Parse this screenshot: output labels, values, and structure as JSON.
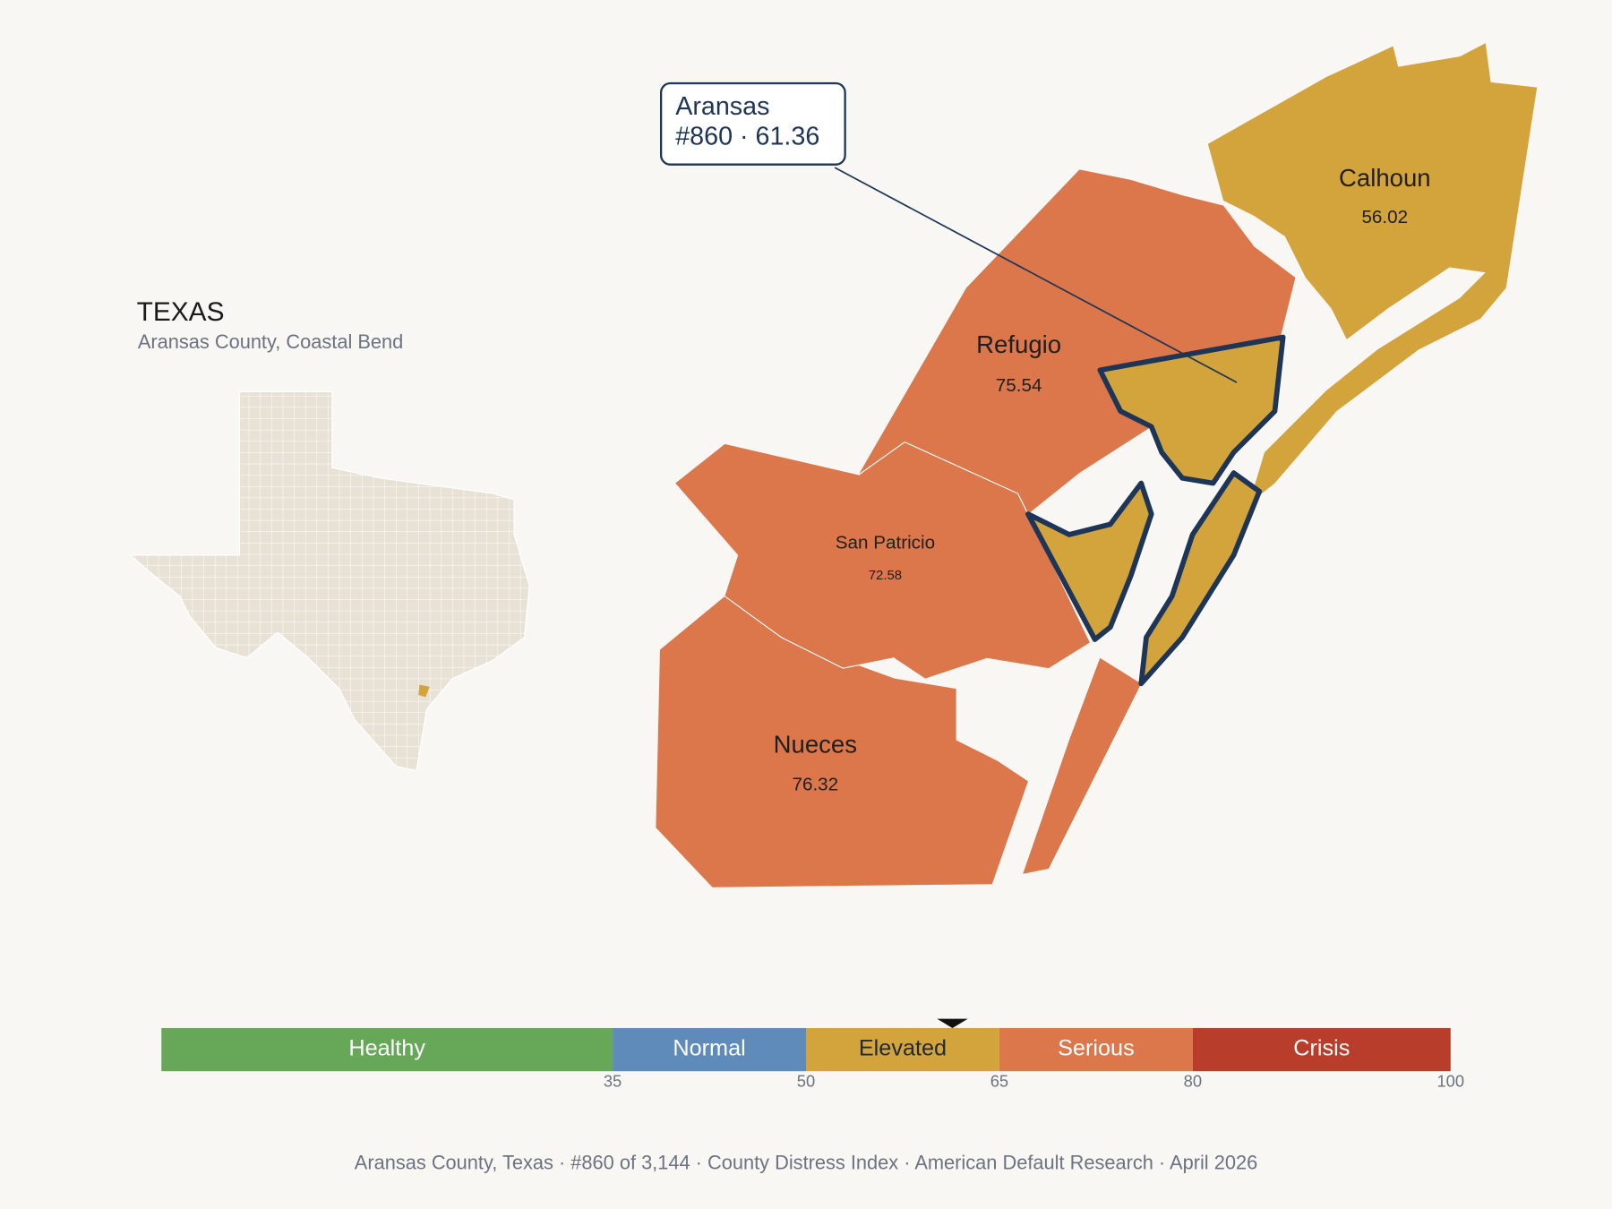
{
  "header": {
    "title": "TEXAS",
    "subtitle": "Aransas County, Coastal Bend"
  },
  "callout": {
    "name": "Aransas",
    "detail": "#860 · 61.36",
    "score": 61.36
  },
  "counties": [
    {
      "name": "Calhoun",
      "value": 56.02
    },
    {
      "name": "Refugio",
      "value": 75.54
    },
    {
      "name": "San Patricio",
      "value": 72.58
    },
    {
      "name": "Nueces",
      "value": 76.32
    }
  ],
  "legend": {
    "lim": [
      0,
      100
    ],
    "ticks": [
      35,
      50,
      65,
      80,
      100
    ],
    "bands": [
      {
        "name": "Healthy",
        "color": "#67a758",
        "text_color": "#ffffff"
      },
      {
        "name": "Normal",
        "color": "#5e8bba",
        "text_color": "#ffffff"
      },
      {
        "name": "Elevated",
        "color": "#d4a43c",
        "text_color": "#1f2a37"
      },
      {
        "name": "Serious",
        "color": "#db774b",
        "text_color": "#ffffff"
      },
      {
        "name": "Crisis",
        "color": "#b93d2b",
        "text_color": "#ffffff"
      }
    ]
  },
  "footer": "Aransas County, Texas  ·  #860 of 3,144  ·  County Distress Index  ·  American Default Research  ·  April 2026"
}
